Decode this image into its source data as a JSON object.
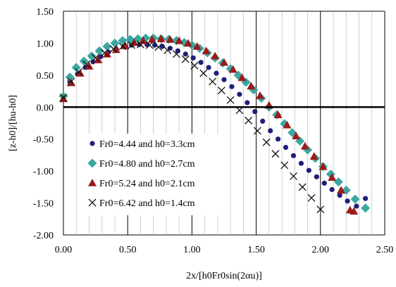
{
  "chart_data": {
    "type": "scatter",
    "xlabel": "2x/[h0Fr0sin(2αu)]",
    "ylabel": "[z-h0]/[hu-h0]",
    "xlim": [
      0,
      2.5
    ],
    "ylim": [
      -2.0,
      1.5
    ],
    "x_ticks": [
      "0.00",
      "0.50",
      "1.00",
      "1.50",
      "2.00",
      "2.50"
    ],
    "y_ticks": [
      "1.50",
      "1.00",
      "0.50",
      "0.00",
      "-0.50",
      "-1.00",
      "-1.50",
      "-2.00"
    ],
    "grid": "vertical",
    "legend_position": "lower-left",
    "series": [
      {
        "name": "Fr0=4.44 and h0=3.3cm",
        "marker": "circle",
        "color": "#1f1f7a",
        "x": [
          0.0,
          0.05,
          0.11,
          0.17,
          0.23,
          0.29,
          0.35,
          0.41,
          0.47,
          0.53,
          0.59,
          0.65,
          0.71,
          0.77,
          0.83,
          0.89,
          0.95,
          1.01,
          1.07,
          1.13,
          1.19,
          1.25,
          1.31,
          1.37,
          1.43,
          1.49,
          1.55,
          1.61,
          1.67,
          1.73,
          1.79,
          1.85,
          1.91,
          1.97,
          2.03,
          2.09,
          2.15,
          2.21,
          2.28,
          2.35
        ],
        "y": [
          0.15,
          0.4,
          0.52,
          0.62,
          0.71,
          0.79,
          0.86,
          0.91,
          0.95,
          0.97,
          0.98,
          0.98,
          0.97,
          0.95,
          0.92,
          0.88,
          0.83,
          0.77,
          0.7,
          0.62,
          0.53,
          0.43,
          0.32,
          0.2,
          0.07,
          -0.07,
          -0.22,
          -0.37,
          -0.5,
          -0.63,
          -0.76,
          -0.88,
          -0.99,
          -1.09,
          -1.19,
          -1.29,
          -1.38,
          -1.47,
          -1.55,
          -1.43
        ]
      },
      {
        "name": "Fr0=4.80 and h0=2.7cm",
        "marker": "diamond",
        "color": "#3aa7a0",
        "x": [
          0.0,
          0.05,
          0.1,
          0.16,
          0.22,
          0.28,
          0.34,
          0.4,
          0.46,
          0.52,
          0.58,
          0.64,
          0.7,
          0.76,
          0.82,
          0.88,
          0.94,
          1.0,
          1.06,
          1.12,
          1.18,
          1.24,
          1.3,
          1.36,
          1.42,
          1.48,
          1.54,
          1.6,
          1.66,
          1.72,
          1.78,
          1.84,
          1.9,
          1.96,
          2.02,
          2.08,
          2.14,
          2.2,
          2.27,
          2.35
        ],
        "y": [
          0.17,
          0.47,
          0.62,
          0.72,
          0.8,
          0.88,
          0.95,
          1.0,
          1.04,
          1.06,
          1.07,
          1.08,
          1.08,
          1.07,
          1.06,
          1.04,
          1.01,
          0.97,
          0.92,
          0.85,
          0.77,
          0.69,
          0.6,
          0.5,
          0.39,
          0.27,
          0.14,
          0.0,
          -0.12,
          -0.26,
          -0.4,
          -0.53,
          -0.67,
          -0.8,
          -0.93,
          -1.05,
          -1.17,
          -1.3,
          -1.44,
          -1.58
        ]
      },
      {
        "name": "Fr0=5.24 and h0=2.1cm",
        "marker": "triangle",
        "color": "#9b1b1b",
        "x": [
          0.0,
          0.06,
          0.13,
          0.2,
          0.27,
          0.34,
          0.41,
          0.48,
          0.55,
          0.62,
          0.69,
          0.76,
          0.83,
          0.9,
          0.97,
          1.04,
          1.11,
          1.18,
          1.25,
          1.32,
          1.39,
          1.46,
          1.53,
          1.6,
          1.67,
          1.74,
          1.81,
          1.88,
          1.95,
          2.02,
          2.09,
          2.16,
          2.23,
          2.26
        ],
        "y": [
          0.13,
          0.38,
          0.53,
          0.64,
          0.74,
          0.83,
          0.9,
          0.96,
          1.01,
          1.04,
          1.06,
          1.07,
          1.06,
          1.04,
          1.0,
          0.95,
          0.88,
          0.8,
          0.7,
          0.59,
          0.46,
          0.33,
          0.18,
          0.03,
          -0.12,
          -0.28,
          -0.45,
          -0.61,
          -0.77,
          -0.93,
          -1.1,
          -1.3,
          -1.61,
          -1.63
        ]
      },
      {
        "name": "Fr0=6.42 and h0=1.4cm",
        "marker": "x",
        "color": "#111111",
        "x": [
          0.0,
          0.06,
          0.12,
          0.18,
          0.25,
          0.32,
          0.39,
          0.46,
          0.53,
          0.6,
          0.67,
          0.74,
          0.81,
          0.88,
          0.95,
          1.02,
          1.09,
          1.16,
          1.23,
          1.3,
          1.37,
          1.44,
          1.51,
          1.58,
          1.65,
          1.72,
          1.79,
          1.86,
          1.93,
          2.0
        ],
        "y": [
          0.15,
          0.4,
          0.55,
          0.67,
          0.77,
          0.85,
          0.91,
          0.95,
          0.97,
          0.98,
          0.97,
          0.94,
          0.89,
          0.83,
          0.75,
          0.65,
          0.53,
          0.4,
          0.26,
          0.11,
          -0.05,
          -0.21,
          -0.37,
          -0.55,
          -0.73,
          -0.91,
          -1.08,
          -1.25,
          -1.42,
          -1.6
        ]
      }
    ]
  }
}
